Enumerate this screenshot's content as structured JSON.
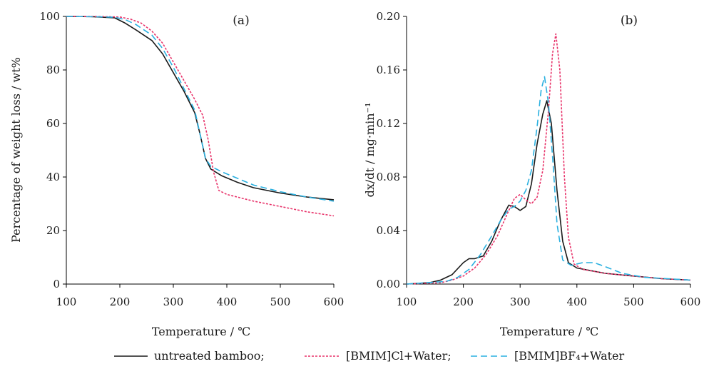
{
  "legend": {
    "entries": [
      {
        "label": "untreated bamboo;",
        "color": "#1a1a1a",
        "dash": "solid"
      },
      {
        "label": "[BMIM]Cl+Water;",
        "color": "#e8336a",
        "dash": "dotted"
      },
      {
        "label": "[BMIM]BF₄+Water",
        "color": "#2ab0e0",
        "dash": "dashed"
      }
    ]
  },
  "chart_data": [
    {
      "type": "line",
      "panel_label": "(a)",
      "xlabel": "Temperature / ℃",
      "ylabel": "Percentage of weight loss / wt%",
      "xlim": [
        100,
        600
      ],
      "ylim": [
        0,
        100
      ],
      "xticks": [
        "100",
        "200",
        "300",
        "400",
        "500",
        "600"
      ],
      "yticks": [
        "0",
        "20",
        "40",
        "60",
        "80",
        "100"
      ],
      "series": [
        {
          "name": "untreated bamboo",
          "color": "#1a1a1a",
          "dash": "solid",
          "x": [
            100,
            150,
            190,
            210,
            230,
            260,
            280,
            300,
            320,
            340,
            350,
            360,
            370,
            390,
            420,
            450,
            500,
            550,
            600
          ],
          "y": [
            100,
            99.9,
            99.5,
            97.5,
            95,
            91,
            86,
            79,
            72,
            64,
            56,
            47,
            43,
            40.5,
            38,
            36,
            34,
            32.5,
            31.5
          ]
        },
        {
          "name": "[BMIM]Cl+Water",
          "color": "#e8336a",
          "dash": "dotted",
          "x": [
            100,
            150,
            200,
            220,
            240,
            260,
            280,
            300,
            320,
            340,
            355,
            365,
            375,
            385,
            400,
            450,
            500,
            550,
            600
          ],
          "y": [
            100,
            100,
            99.8,
            99,
            97.5,
            94.5,
            90,
            83,
            76,
            69,
            63,
            54,
            42,
            35,
            33.5,
            31,
            29,
            27,
            25.5
          ]
        },
        {
          "name": "[BMIM]BF₄+Water",
          "color": "#2ab0e0",
          "dash": "dashed",
          "x": [
            100,
            150,
            190,
            210,
            230,
            260,
            280,
            300,
            320,
            340,
            350,
            360,
            370,
            390,
            420,
            450,
            500,
            550,
            600
          ],
          "y": [
            100,
            99.9,
            99.7,
            98.8,
            97,
            93,
            88,
            81,
            73,
            65,
            56,
            47,
            44,
            42,
            39.5,
            37,
            34.5,
            32.5,
            31
          ]
        }
      ]
    },
    {
      "type": "line",
      "panel_label": "(b)",
      "xlabel": "Temperature / ℃",
      "ylabel": "dx/dt / mg·min⁻¹",
      "xlim": [
        100,
        600
      ],
      "ylim": [
        0,
        0.2
      ],
      "xticks": [
        "100",
        "200",
        "300",
        "400",
        "500",
        "600"
      ],
      "yticks": [
        "0.00",
        "0.04",
        "0.08",
        "0.12",
        "0.16",
        "0.20"
      ],
      "series": [
        {
          "name": "untreated bamboo",
          "color": "#1a1a1a",
          "dash": "solid",
          "x": [
            100,
            140,
            160,
            180,
            200,
            210,
            220,
            235,
            250,
            265,
            280,
            290,
            300,
            310,
            320,
            330,
            340,
            347,
            355,
            365,
            375,
            385,
            400,
            450,
            500,
            550,
            600
          ],
          "y": [
            0.0,
            0.001,
            0.003,
            0.007,
            0.016,
            0.019,
            0.019,
            0.021,
            0.032,
            0.047,
            0.059,
            0.058,
            0.055,
            0.058,
            0.075,
            0.105,
            0.127,
            0.137,
            0.12,
            0.07,
            0.032,
            0.016,
            0.012,
            0.008,
            0.006,
            0.004,
            0.003
          ]
        },
        {
          "name": "[BMIM]Cl+Water",
          "color": "#e8336a",
          "dash": "dotted",
          "x": [
            100,
            160,
            180,
            200,
            220,
            240,
            260,
            280,
            290,
            300,
            310,
            320,
            330,
            340,
            350,
            357,
            363,
            370,
            378,
            385,
            395,
            410,
            450,
            500,
            550,
            600
          ],
          "y": [
            0.0,
            0.001,
            0.003,
            0.006,
            0.012,
            0.022,
            0.036,
            0.055,
            0.064,
            0.067,
            0.063,
            0.06,
            0.065,
            0.085,
            0.13,
            0.172,
            0.187,
            0.16,
            0.08,
            0.035,
            0.015,
            0.011,
            0.008,
            0.006,
            0.004,
            0.003
          ]
        },
        {
          "name": "[BMIM]BF₄+Water",
          "color": "#2ab0e0",
          "dash": "dashed",
          "x": [
            100,
            170,
            190,
            210,
            230,
            250,
            265,
            280,
            290,
            300,
            310,
            320,
            330,
            337,
            343,
            350,
            358,
            365,
            375,
            390,
            410,
            430,
            450,
            480,
            520,
            560,
            600
          ],
          "y": [
            0.0,
            0.002,
            0.005,
            0.011,
            0.022,
            0.036,
            0.047,
            0.056,
            0.058,
            0.062,
            0.07,
            0.085,
            0.118,
            0.145,
            0.155,
            0.135,
            0.09,
            0.045,
            0.018,
            0.014,
            0.016,
            0.016,
            0.013,
            0.008,
            0.005,
            0.004,
            0.003
          ]
        }
      ]
    }
  ]
}
